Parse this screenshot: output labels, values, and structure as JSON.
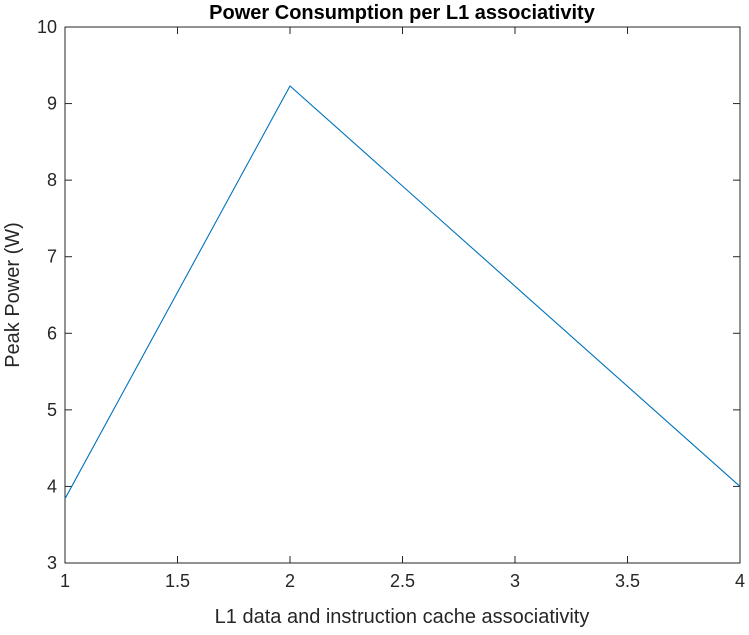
{
  "chart_data": {
    "type": "line",
    "title": "Power Consumption per L1 associativity",
    "xlabel": "L1 data and instruction cache associativity",
    "ylabel": "Peak Power (W)",
    "xlim": [
      1,
      4
    ],
    "ylim": [
      3,
      10
    ],
    "xticks": [
      1,
      1.5,
      2,
      2.5,
      3,
      3.5,
      4
    ],
    "yticks": [
      3,
      4,
      5,
      6,
      7,
      8,
      9,
      10
    ],
    "xtick_labels": [
      "1",
      "1.5",
      "2",
      "2.5",
      "3",
      "3.5",
      "4"
    ],
    "ytick_labels": [
      "3",
      "4",
      "5",
      "6",
      "7",
      "8",
      "9",
      "10"
    ],
    "grid": false,
    "series": [
      {
        "color": "#0072BD",
        "x": [
          1,
          2,
          4
        ],
        "y": [
          3.84,
          9.23,
          4.0
        ]
      }
    ]
  }
}
